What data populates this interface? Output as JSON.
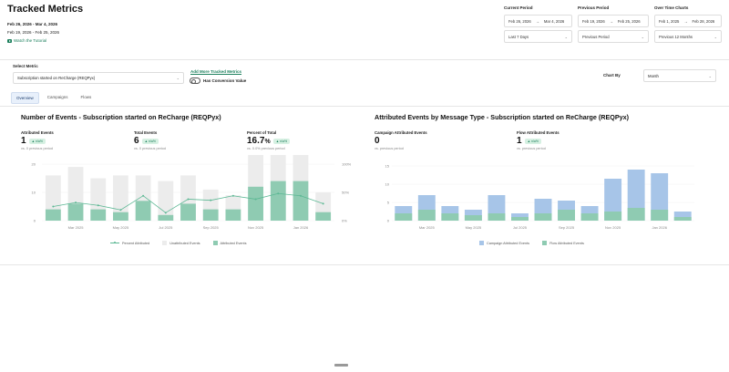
{
  "header": {
    "title": "Tracked Metrics",
    "current_range": "Feb 26, 2026 - Mar 4, 2026",
    "previous_range": "Feb 19, 2026 - Feb 25, 2026",
    "tutorial_link": "Watch the Tutorial"
  },
  "periods": {
    "current": {
      "label": "Current Period",
      "start": "Feb 26, 2026",
      "end": "Mar 4, 2026",
      "preset": "Last 7 Days"
    },
    "previous": {
      "label": "Previous Period",
      "start": "Feb 19, 2026",
      "end": "Feb 25, 2026",
      "preset": "Previous Period"
    },
    "over_time": {
      "label": "Over Time Charts",
      "start": "Feb 1, 2025",
      "end": "Feb 28, 2026",
      "preset": "Previous 12 Months"
    }
  },
  "controls": {
    "select_metric_label": "Select Metric",
    "metric_value": "Subscription started on ReCharge (REQPyx)",
    "add_metric": "Add More Tracked Metrics",
    "conversion_toggle_label": "Has Conversion Value",
    "chart_by_label": "Chart By",
    "chart_by_value": "Month"
  },
  "tabs": [
    {
      "label": "Overview",
      "active": true
    },
    {
      "label": "Campaigns",
      "active": false
    },
    {
      "label": "Flows",
      "active": false
    }
  ],
  "left_panel": {
    "title": "Number of Events - Subscription started on ReCharge (REQPyx)",
    "kpis": [
      {
        "label": "Attributed Events",
        "value": "1",
        "badge": "▲ n/a%",
        "sub": "vs. 0 previous period"
      },
      {
        "label": "Total Events",
        "value": "6",
        "badge": "▲ n/a%",
        "sub": "vs. 0 previous period"
      },
      {
        "label": "Percent of Total",
        "value": "16.7",
        "unit": "%",
        "badge": "▲ n/a%",
        "sub": "vs. 0.0% previous period"
      }
    ],
    "legend": [
      "Percent Attributed",
      "Unattributed Events",
      "Attributed Events"
    ]
  },
  "right_panel": {
    "title": "Attributed Events by Message Type - Subscription started on ReCharge (REQPyx)",
    "kpis": [
      {
        "label": "Campaign Attributed Events",
        "value": "0",
        "sub": "vs. previous period"
      },
      {
        "label": "Flow Attributed Events",
        "value": "1",
        "badge": "▲ n/a%",
        "sub": "vs. previous period"
      }
    ],
    "legend": [
      "Campaign Attributed Events",
      "Flow Attributed Events"
    ]
  },
  "colors": {
    "attributed": "#8fcbb2",
    "unattributed": "#ececec",
    "percent_line": "#5cb894",
    "campaign": "#a7c5e8",
    "flow": "#8fcbb2"
  },
  "chart_data": [
    {
      "type": "bar",
      "title": "Number of Events - Subscription started on ReCharge (REQPyx)",
      "categories": [
        "Feb 2025",
        "Mar 2025",
        "Apr 2025",
        "May 2025",
        "Jun 2025",
        "Jul 2025",
        "Aug 2025",
        "Sep 2025",
        "Oct 2025",
        "Nov 2025",
        "Dec 2025",
        "Jan 2026",
        "Feb 2026"
      ],
      "x_tick_labels": [
        "Mar 2025",
        "May 2025",
        "Jul 2025",
        "Sep 2025",
        "Nov 2025",
        "Jan 2026"
      ],
      "y_ticks": [
        "0",
        "10",
        "20"
      ],
      "y2_ticks": [
        "0%",
        "50%",
        "100%"
      ],
      "ylim": [
        0,
        20
      ],
      "y2lim": [
        0,
        100
      ],
      "series": [
        {
          "name": "Attributed Events",
          "values": [
            4,
            6,
            4,
            3,
            7,
            2,
            6,
            4,
            4,
            12,
            14,
            14,
            3
          ]
        },
        {
          "name": "Unattributed Events",
          "values": [
            12,
            13,
            11,
            13,
            9,
            12,
            10,
            7,
            5,
            20,
            15,
            18,
            7
          ]
        },
        {
          "name": "Percent Attributed",
          "values": [
            25,
            32,
            27,
            19,
            44,
            14,
            38,
            36,
            44,
            38,
            48,
            44,
            30
          ]
        }
      ]
    },
    {
      "type": "bar",
      "title": "Attributed Events by Message Type - Subscription started on ReCharge (REQPyx)",
      "categories": [
        "Feb 2025",
        "Mar 2025",
        "Apr 2025",
        "May 2025",
        "Jun 2025",
        "Jul 2025",
        "Aug 2025",
        "Sep 2025",
        "Oct 2025",
        "Nov 2025",
        "Dec 2025",
        "Jan 2026",
        "Feb 2026"
      ],
      "x_tick_labels": [
        "Mar 2025",
        "May 2025",
        "Jul 2025",
        "Sep 2025",
        "Nov 2025",
        "Jan 2026"
      ],
      "y_ticks": [
        "0",
        "5",
        "10",
        "15"
      ],
      "ylim": [
        0,
        15
      ],
      "series": [
        {
          "name": "Flow Attributed Events",
          "values": [
            2,
            3,
            2,
            1.5,
            2,
            1,
            2,
            3,
            2,
            2.5,
            3.5,
            3,
            1
          ]
        },
        {
          "name": "Campaign Attributed Events",
          "values": [
            2,
            4,
            2,
            1.5,
            5,
            1,
            4,
            2.5,
            2,
            9,
            10.5,
            10,
            1.5
          ]
        }
      ]
    }
  ]
}
